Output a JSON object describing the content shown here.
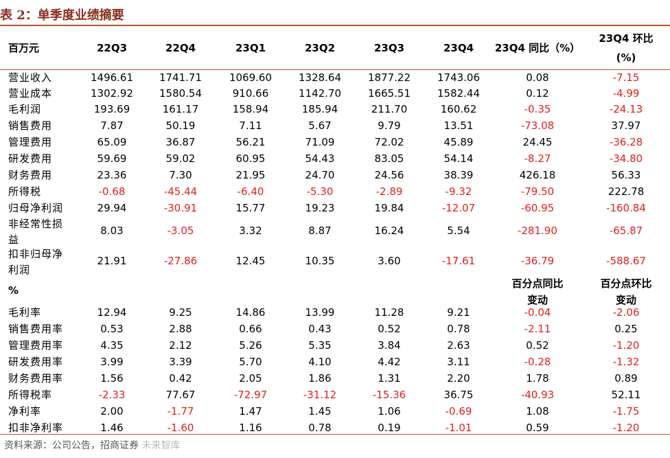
{
  "title": "表 2：单季度业绩摘要",
  "header": {
    "unit": "百万元",
    "columns": [
      "22Q3",
      "22Q4",
      "23Q1",
      "23Q2",
      "23Q3",
      "23Q4"
    ],
    "yoy": "23Q4 同比（%）",
    "qoq_line1": "23Q4 环比",
    "qoq_line2": "(%)"
  },
  "rows": [
    {
      "label": "营业收入",
      "values": [
        "1496.61",
        "1741.71",
        "1069.60",
        "1328.64",
        "1877.22",
        "1743.06",
        "0.08",
        "-7.15"
      ]
    },
    {
      "label": "营业成本",
      "values": [
        "1302.92",
        "1580.54",
        "910.66",
        "1142.70",
        "1665.51",
        "1582.44",
        "0.12",
        "-4.99"
      ]
    },
    {
      "label": "毛利润",
      "values": [
        "193.69",
        "161.17",
        "158.94",
        "185.94",
        "211.70",
        "160.62",
        "-0.35",
        "-24.13"
      ]
    },
    {
      "label": "销售费用",
      "values": [
        "7.87",
        "50.19",
        "7.11",
        "5.67",
        "9.79",
        "13.51",
        "-73.08",
        "37.97"
      ]
    },
    {
      "label": "管理费用",
      "values": [
        "65.09",
        "36.87",
        "56.21",
        "71.09",
        "72.02",
        "45.89",
        "24.45",
        "-36.28"
      ]
    },
    {
      "label": "研发费用",
      "values": [
        "59.69",
        "59.02",
        "60.95",
        "54.43",
        "83.05",
        "54.14",
        "-8.27",
        "-34.80"
      ]
    },
    {
      "label": "财务费用",
      "values": [
        "23.36",
        "7.30",
        "21.95",
        "24.70",
        "24.56",
        "38.39",
        "426.18",
        "56.33"
      ]
    },
    {
      "label": "所得税",
      "values": [
        "-0.68",
        "-45.44",
        "-6.40",
        "-5.30",
        "-2.89",
        "-9.32",
        "-79.50",
        "222.78"
      ]
    },
    {
      "label": "归母净利润",
      "values": [
        "29.94",
        "-30.91",
        "15.77",
        "19.23",
        "19.84",
        "-12.07",
        "-60.95",
        "-160.84"
      ]
    },
    {
      "label1": "非经常性损",
      "label2": "益",
      "values": [
        "8.03",
        "-3.05",
        "3.32",
        "8.87",
        "16.24",
        "5.54",
        "-281.90",
        "-65.87"
      ]
    },
    {
      "label1": "扣非归母净",
      "label2": "利润",
      "values": [
        "21.91",
        "-27.86",
        "12.45",
        "10.35",
        "3.60",
        "-17.61",
        "-36.79",
        "-588.67"
      ]
    }
  ],
  "pct_section": {
    "label": "%",
    "yoy_line1": "百分点同比",
    "yoy_line2": "变动",
    "qoq_line1": "百分点环比",
    "qoq_line2": "变动"
  },
  "pct_rows": [
    {
      "label": "毛利率",
      "values": [
        "12.94",
        "9.25",
        "14.86",
        "13.99",
        "11.28",
        "9.21",
        "-0.04",
        "-2.06"
      ]
    },
    {
      "label": "销售费用率",
      "values": [
        "0.53",
        "2.88",
        "0.66",
        "0.43",
        "0.52",
        "0.78",
        "-2.11",
        "0.25"
      ]
    },
    {
      "label": "管理费用率",
      "values": [
        "4.35",
        "2.12",
        "5.26",
        "5.35",
        "3.84",
        "2.63",
        "0.52",
        "-1.20"
      ]
    },
    {
      "label": "研发费用率",
      "values": [
        "3.99",
        "3.39",
        "5.70",
        "4.10",
        "4.42",
        "3.11",
        "-0.28",
        "-1.32"
      ]
    },
    {
      "label": "财务费用率",
      "values": [
        "1.56",
        "0.42",
        "2.05",
        "1.86",
        "1.31",
        "2.20",
        "1.78",
        "0.89"
      ]
    },
    {
      "label": "所得税率",
      "values": [
        "-2.33",
        "77.67",
        "-72.97",
        "-31.12",
        "-15.36",
        "36.75",
        "-40.93",
        "52.11"
      ]
    },
    {
      "label": "净利率",
      "values": [
        "2.00",
        "-1.77",
        "1.47",
        "1.45",
        "1.06",
        "-0.69",
        "1.08",
        "-1.75"
      ]
    },
    {
      "label": "扣非净利率",
      "values": [
        "1.46",
        "-1.60",
        "1.16",
        "0.78",
        "0.19",
        "-1.01",
        "0.59",
        "-1.20"
      ]
    }
  ],
  "source": "资料来源：公司公告，招商证券",
  "watermark": "未来智库",
  "colors": {
    "title": "#8B2E1E",
    "rule": "#B8522E",
    "negative": "#E0201B"
  }
}
